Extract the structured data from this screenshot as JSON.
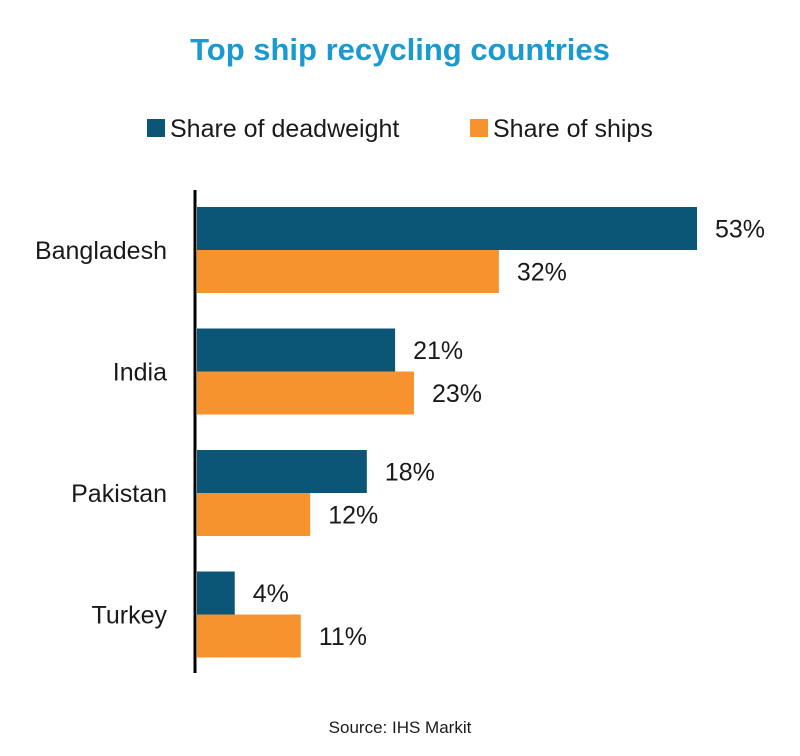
{
  "chart_data": {
    "type": "bar",
    "orientation": "horizontal",
    "title": "Top ship recycling countries",
    "categories": [
      "Bangladesh",
      "India",
      "Pakistan",
      "Turkey"
    ],
    "series": [
      {
        "name": "Share of deadweight",
        "values": [
          53,
          21,
          18,
          4
        ],
        "labels": [
          "53%",
          "21%",
          "18%",
          "4%"
        ],
        "color": "#0b5677"
      },
      {
        "name": "Share of ships",
        "values": [
          32,
          23,
          12,
          11
        ],
        "labels": [
          "32%",
          "23%",
          "12%",
          "11%"
        ],
        "color": "#f7932f"
      }
    ],
    "xlim": [
      0,
      53
    ],
    "xlabel": "",
    "ylabel": "",
    "grid": false,
    "legend_position": "top",
    "source": "Source: IHS Markit"
  },
  "colors": {
    "title": "#1a9ad0",
    "axis": "#000000",
    "text": "#1a1a1a"
  }
}
